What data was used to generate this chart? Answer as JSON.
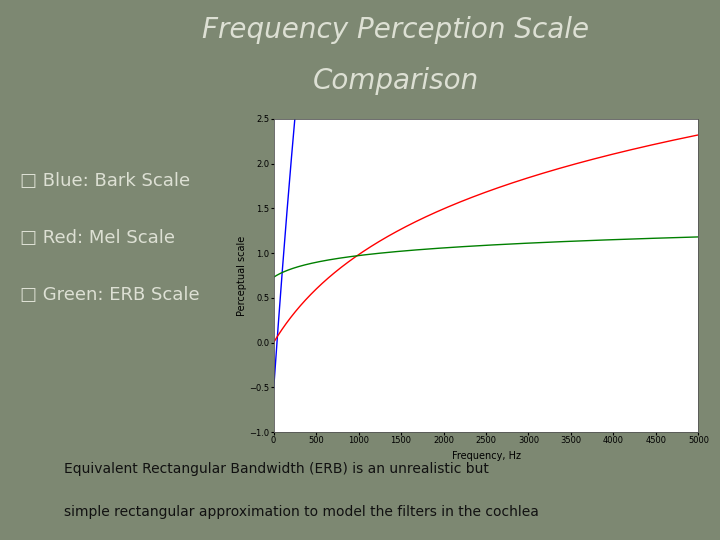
{
  "title_line1": "Frequency Perception Scale",
  "title_line2": "Comparison",
  "bg_color": "#7d8872",
  "legend_labels": [
    "□ Blue: Bark Scale",
    "□ Red: Mel Scale",
    "□ Green: ERB Scale"
  ],
  "footer_line1": "Equivalent Rectangular Bandwidth (ERB) is an unrealistic but",
  "footer_line2": "simple rectangular approximation to model the filters in the cochlea",
  "xlabel": "Frequency, Hz",
  "ylabel": "Perceptual scale",
  "xlim": [
    0,
    5000
  ],
  "ylim": [
    -1,
    2.5
  ],
  "xticks": [
    0,
    500,
    1000,
    1500,
    2000,
    2500,
    3000,
    3500,
    4000,
    4500,
    5000
  ],
  "yticks": [
    -1,
    -0.5,
    0,
    0.5,
    1,
    1.5,
    2,
    2.5
  ],
  "bark_color": "blue",
  "mel_color": "red",
  "erb_color": "green",
  "title_color": "#dde0d4",
  "legend_text_color": "#dde0d4",
  "footer_color": "#111111",
  "title_fontsize": 20,
  "legend_fontsize": 13,
  "footer_fontsize": 10
}
